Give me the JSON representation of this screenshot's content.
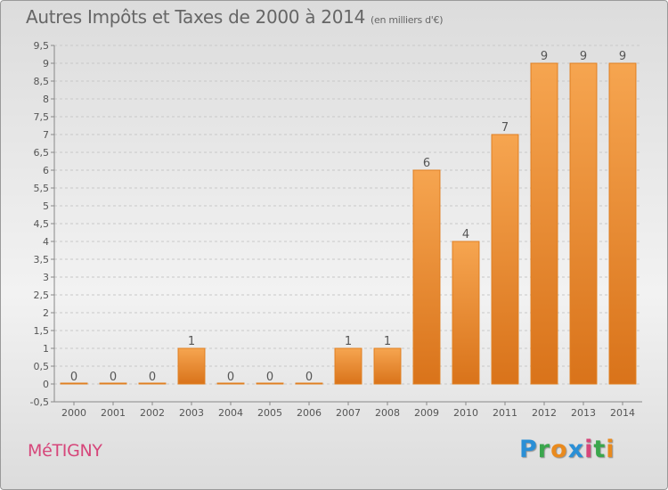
{
  "chart_data": {
    "type": "bar",
    "title": "Autres Impôts et Taxes de 2000 à 2014",
    "unit_label": "(en milliers d'€)",
    "categories": [
      "2000",
      "2001",
      "2002",
      "2003",
      "2004",
      "2005",
      "2006",
      "2007",
      "2008",
      "2009",
      "2010",
      "2011",
      "2012",
      "2013",
      "2014"
    ],
    "values": [
      0,
      0,
      0,
      1,
      0,
      0,
      0,
      1,
      1,
      6,
      4,
      7,
      9,
      9,
      9
    ],
    "ylim": [
      -0.5,
      9.5
    ],
    "yticks": [
      "-0,5",
      "0",
      "0,5",
      "1",
      "1,5",
      "2",
      "2,5",
      "3",
      "3,5",
      "4",
      "4,5",
      "5",
      "5,5",
      "6",
      "6,5",
      "7",
      "7,5",
      "8",
      "8,5",
      "9",
      "9,5"
    ],
    "grid": true,
    "bar_color": "#f29a3f"
  },
  "footer": {
    "commune": "MéTIGNY",
    "logo": [
      "P",
      "r",
      "o",
      "x",
      "i",
      "t",
      "i"
    ]
  }
}
